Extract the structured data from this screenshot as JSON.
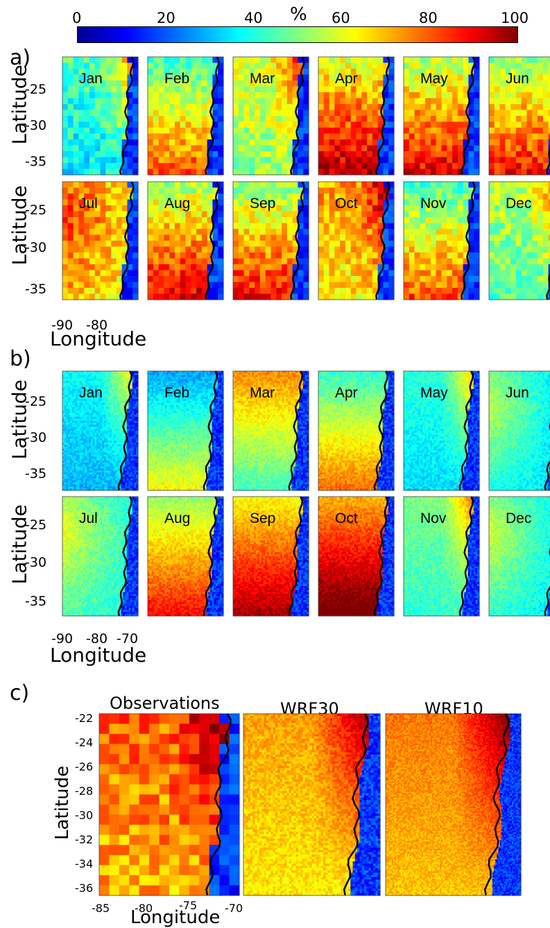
{
  "colorbar": {
    "unit": "%",
    "ticks": [
      "0",
      "20",
      "40",
      "60",
      "80",
      "100"
    ]
  },
  "panels": {
    "a": {
      "letter": "a)"
    },
    "b": {
      "letter": "b)"
    },
    "c": {
      "letter": "c)",
      "titles": [
        "Observations",
        "WRF30",
        "WRF10"
      ]
    }
  },
  "months": [
    "Jan",
    "Feb",
    "Mar",
    "Apr",
    "May",
    "Jun",
    "Jul",
    "Aug",
    "Sep",
    "Oct",
    "Nov",
    "Dec"
  ],
  "axes": {
    "latitude_label": "Latitude",
    "longitude_label": "Longitude",
    "ab_lat_ticks": [
      "-25",
      "-30",
      "-35"
    ],
    "a_lon_ticks": [
      "-90",
      "-80"
    ],
    "b_lon_ticks": [
      "-90",
      "-80",
      "-70"
    ],
    "c_lat_ticks": [
      "-22",
      "-24",
      "-26",
      "-28",
      "-30",
      "-32",
      "-34",
      "-36"
    ],
    "c_lon_ticks": [
      "-85",
      "-80",
      "-75",
      "-70"
    ]
  },
  "chart_data": {
    "type": "heatmap",
    "colorscale": "jet",
    "zlim": [
      0,
      100
    ],
    "maps": [
      {
        "panel": "a",
        "label": "Jan",
        "level": 45,
        "hot": "north-east"
      },
      {
        "panel": "a",
        "label": "Feb",
        "level": 55,
        "hot": "south"
      },
      {
        "panel": "a",
        "label": "Mar",
        "level": 60,
        "hot": "north-east"
      },
      {
        "panel": "a",
        "label": "Apr",
        "level": 70,
        "hot": "south"
      },
      {
        "panel": "a",
        "label": "May",
        "level": 65,
        "hot": "south"
      },
      {
        "panel": "a",
        "label": "Jun",
        "level": 62,
        "hot": "south"
      },
      {
        "panel": "a",
        "label": "Jul",
        "level": 68,
        "hot": "west"
      },
      {
        "panel": "a",
        "label": "Aug",
        "level": 65,
        "hot": "south"
      },
      {
        "panel": "a",
        "label": "Sep",
        "level": 62,
        "hot": "south"
      },
      {
        "panel": "a",
        "label": "Oct",
        "level": 72,
        "hot": "north-east"
      },
      {
        "panel": "a",
        "label": "Nov",
        "level": 55,
        "hot": "south"
      },
      {
        "panel": "a",
        "label": "Dec",
        "level": 55,
        "hot": "north-east"
      },
      {
        "panel": "b",
        "label": "Jan",
        "level": 38,
        "hot": "north-east"
      },
      {
        "panel": "b",
        "label": "Feb",
        "level": 38,
        "hot": "south"
      },
      {
        "panel": "b",
        "label": "Mar",
        "level": 52,
        "hot": "north"
      },
      {
        "panel": "b",
        "label": "Apr",
        "level": 52,
        "hot": "south"
      },
      {
        "panel": "b",
        "label": "May",
        "level": 42,
        "hot": "north-east"
      },
      {
        "panel": "b",
        "label": "Jun",
        "level": 40,
        "hot": "west"
      },
      {
        "panel": "b",
        "label": "Jul",
        "level": 45,
        "hot": "west"
      },
      {
        "panel": "b",
        "label": "Aug",
        "level": 62,
        "hot": "south"
      },
      {
        "panel": "b",
        "label": "Sep",
        "level": 72,
        "hot": "south"
      },
      {
        "panel": "b",
        "label": "Oct",
        "level": 80,
        "hot": "south"
      },
      {
        "panel": "b",
        "label": "Nov",
        "level": 50,
        "hot": "north-east"
      },
      {
        "panel": "b",
        "label": "Dec",
        "level": 42,
        "hot": "west"
      },
      {
        "panel": "c",
        "label": "Observations",
        "level": 78,
        "hot": "north-east"
      },
      {
        "panel": "c",
        "label": "WRF30",
        "level": 72,
        "hot": "north-east"
      },
      {
        "panel": "c",
        "label": "WRF10",
        "level": 76,
        "hot": "north-east"
      }
    ]
  },
  "colors": {
    "jet": [
      "#00008f",
      "#0000ff",
      "#0080ff",
      "#00ffff",
      "#80ff80",
      "#ffff00",
      "#ff8000",
      "#ff0000",
      "#800000"
    ],
    "coast": "#000000"
  }
}
